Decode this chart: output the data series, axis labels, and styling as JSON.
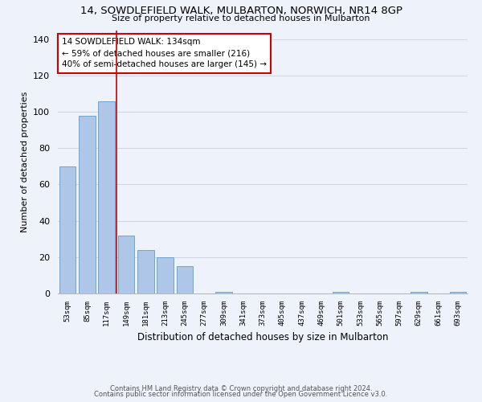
{
  "title": "14, SOWDLEFIELD WALK, MULBARTON, NORWICH, NR14 8GP",
  "subtitle": "Size of property relative to detached houses in Mulbarton",
  "xlabel": "Distribution of detached houses by size in Mulbarton",
  "ylabel": "Number of detached properties",
  "footnote1": "Contains HM Land Registry data © Crown copyright and database right 2024.",
  "footnote2": "Contains public sector information licensed under the Open Government Licence v3.0.",
  "bar_labels": [
    "53sqm",
    "85sqm",
    "117sqm",
    "149sqm",
    "181sqm",
    "213sqm",
    "245sqm",
    "277sqm",
    "309sqm",
    "341sqm",
    "373sqm",
    "405sqm",
    "437sqm",
    "469sqm",
    "501sqm",
    "533sqm",
    "565sqm",
    "597sqm",
    "629sqm",
    "661sqm",
    "693sqm"
  ],
  "bar_values": [
    70,
    98,
    106,
    32,
    24,
    20,
    15,
    0,
    1,
    0,
    0,
    0,
    0,
    0,
    1,
    0,
    0,
    0,
    1,
    0,
    1
  ],
  "bar_color": "#aec6e8",
  "bar_edge_color": "#5f9ec9",
  "ylim": [
    0,
    145
  ],
  "yticks": [
    0,
    20,
    40,
    60,
    80,
    100,
    120,
    140
  ],
  "vline_color": "#cc0000",
  "annotation_title": "14 SOWDLEFIELD WALK: 134sqm",
  "annotation_line1": "← 59% of detached houses are smaller (216)",
  "annotation_line2": "40% of semi-detached houses are larger (145) →",
  "annotation_box_color": "#ffffff",
  "annotation_border_color": "#cc0000",
  "background_color": "#eef2fb"
}
